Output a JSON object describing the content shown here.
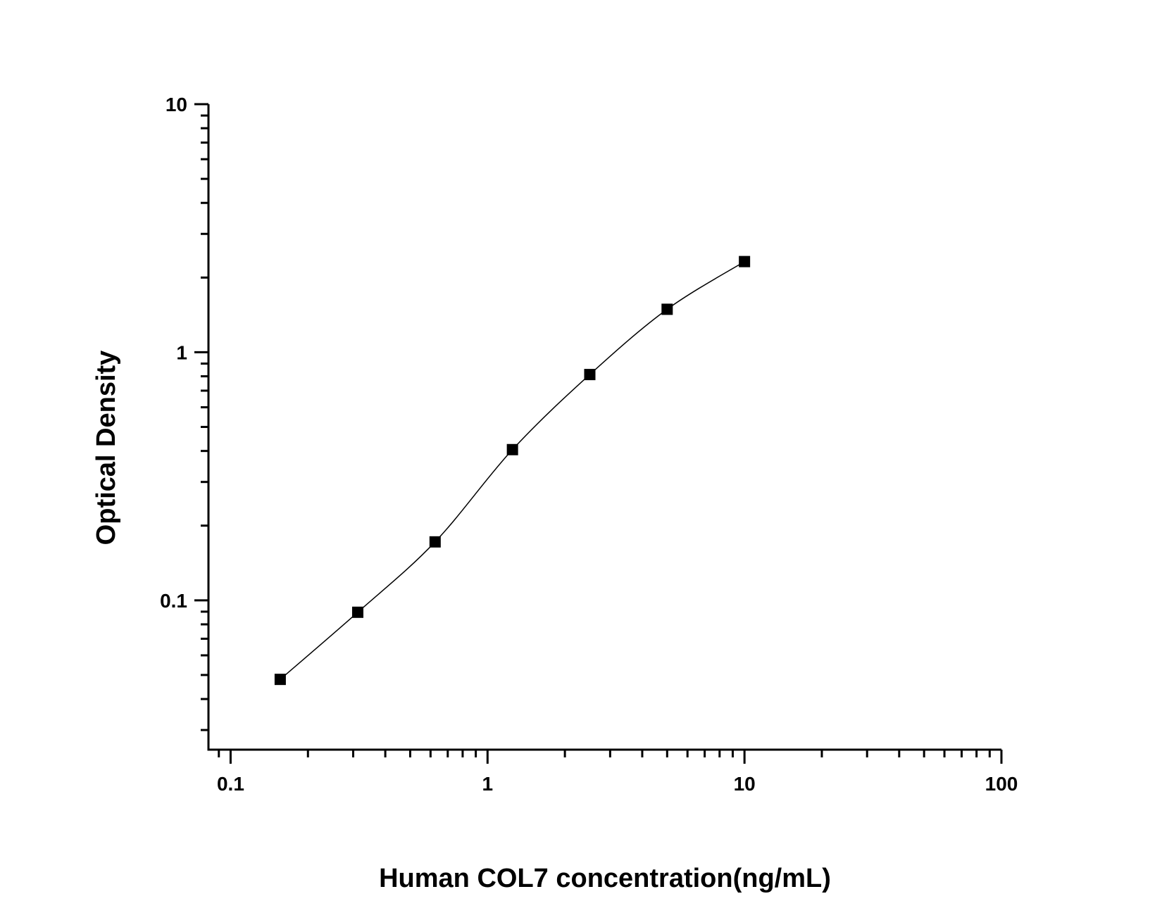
{
  "chart_data": {
    "type": "scatter",
    "title": "",
    "xlabel": "Human COL7 concentration(ng/mL)",
    "ylabel": "Optical Density",
    "x_scale": "log",
    "y_scale": "log",
    "xlim": [
      0.082,
      100
    ],
    "ylim": [
      0.025,
      10
    ],
    "x_ticks": [
      {
        "value": 0.1,
        "label": "0.1"
      },
      {
        "value": 1,
        "label": "1"
      },
      {
        "value": 10,
        "label": "10"
      },
      {
        "value": 100,
        "label": "100"
      }
    ],
    "y_ticks": [
      {
        "value": 0.1,
        "label": "0.1"
      },
      {
        "value": 1,
        "label": "1"
      },
      {
        "value": 10,
        "label": "10"
      }
    ],
    "grid": false,
    "series": [
      {
        "marker": "square",
        "color": "#000000",
        "fit_line": true,
        "x": [
          0.156,
          0.3125,
          0.625,
          1.25,
          2.5,
          5,
          10
        ],
        "y": [
          0.048,
          0.0895,
          0.172,
          0.405,
          0.813,
          1.49,
          2.32
        ]
      }
    ]
  }
}
